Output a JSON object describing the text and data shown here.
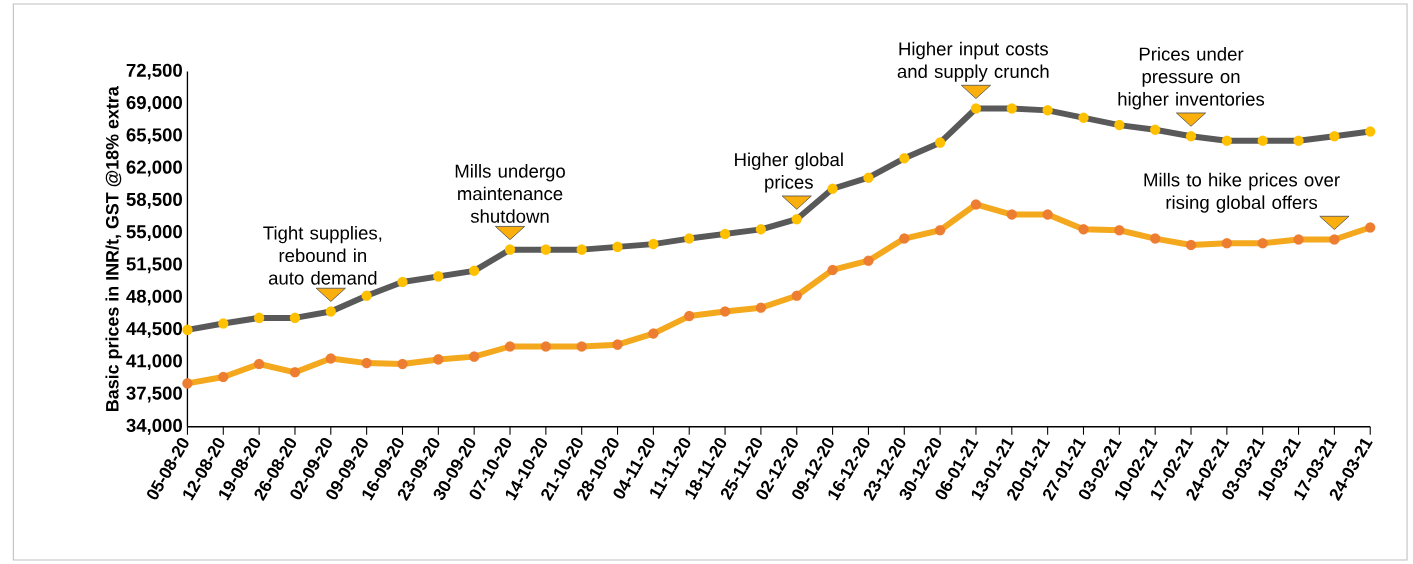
{
  "chart_data": {
    "type": "line",
    "ylabel": "Basic prices in INR/t, GST @18% extra",
    "categories": [
      "05-08-20",
      "12-08-20",
      "19-08-20",
      "26-08-20",
      "02-09-20",
      "09-09-20",
      "16-09-20",
      "23-09-20",
      "30-09-20",
      "07-10-20",
      "14-10-20",
      "21-10-20",
      "28-10-20",
      "04-11-20",
      "11-11-20",
      "18-11-20",
      "25-11-20",
      "02-12-20",
      "09-12-20",
      "16-12-20",
      "23-12-20",
      "30-12-20",
      "06-01-21",
      "13-01-21",
      "20-01-21",
      "27-01-21",
      "03-02-21",
      "10-02-21",
      "17-02-21",
      "24-02-21",
      "03-03-21",
      "10-03-21",
      "17-03-21",
      "24-03-21"
    ],
    "series": [
      {
        "color": "#595959",
        "values": [
          44500,
          45200,
          45800,
          45800,
          46500,
          48200,
          49700,
          50300,
          50900,
          53200,
          53200,
          53200,
          53500,
          53800,
          54400,
          54900,
          55400,
          56500,
          59800,
          61000,
          63100,
          64800,
          68500,
          68500,
          68300,
          67500,
          66700,
          66200,
          65500,
          65000,
          65000,
          65000,
          65500,
          66000
        ]
      },
      {
        "color": "#f4a81d",
        "values": [
          38700,
          39400,
          40800,
          39900,
          41400,
          40900,
          40800,
          41300,
          41600,
          42700,
          42700,
          42700,
          42900,
          44100,
          46000,
          46500,
          46900,
          48200,
          51000,
          52000,
          54400,
          55300,
          58100,
          57000,
          57000,
          55400,
          55300,
          54400,
          53700,
          53900,
          53900,
          54300,
          54300,
          55600
        ]
      }
    ],
    "ylim": [
      34000,
      72500
    ],
    "yticks": [
      {
        "value": 34000,
        "label": "34,000"
      },
      {
        "value": 37500,
        "label": "37,500"
      },
      {
        "value": 41000,
        "label": "41,000"
      },
      {
        "value": 44500,
        "label": "44,500"
      },
      {
        "value": 48000,
        "label": "48,000"
      },
      {
        "value": 51500,
        "label": "51,500"
      },
      {
        "value": 55000,
        "label": "55,000"
      },
      {
        "value": 58500,
        "label": "58,500"
      },
      {
        "value": 62000,
        "label": "62,000"
      },
      {
        "value": 65500,
        "label": "65,500"
      },
      {
        "value": 69000,
        "label": "69,000"
      },
      {
        "value": 72500,
        "label": "72,500"
      }
    ],
    "annotations": [
      {
        "text": "Tight supplies, rebound in auto demand",
        "x": "02-09-20",
        "y": 46500
      },
      {
        "text": "Mills undergo maintenance shutdown",
        "x": "07-10-20",
        "y": 53200
      },
      {
        "text": "Higher global prices",
        "x": "02-12-20",
        "y": 56500
      },
      {
        "text": "Higher input costs and supply crunch",
        "x": "06-01-21",
        "y": 68500
      },
      {
        "text": "Prices under pressure on higher inventories",
        "x": "17-02-21",
        "y": 65500
      },
      {
        "text": "Mills to hike prices over rising global offers",
        "x": "17-03-21",
        "y": 54300
      }
    ],
    "marker": "circle"
  }
}
